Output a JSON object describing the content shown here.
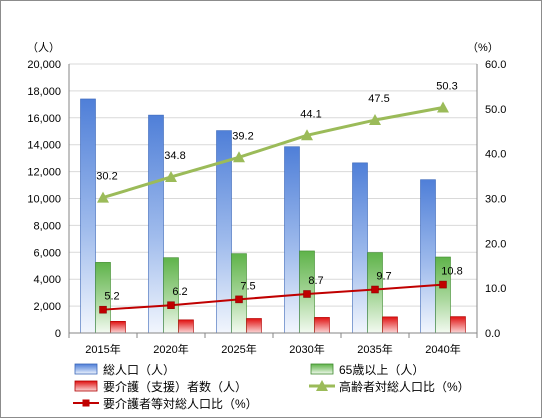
{
  "chart_data": {
    "type": "bar",
    "categories": [
      "2015年",
      "2020年",
      "2025年",
      "2030年",
      "2035年",
      "2040年"
    ],
    "left_axis": {
      "unit_label": "（人）",
      "ylim": [
        0,
        20000
      ],
      "ticks": [
        "0",
        "2,000",
        "4,000",
        "6,000",
        "8,000",
        "10,000",
        "12,000",
        "14,000",
        "16,000",
        "18,000",
        "20,000"
      ]
    },
    "right_axis": {
      "unit_label": "（%）",
      "ylim": [
        0,
        60
      ],
      "ticks": [
        "0.0",
        "10.0",
        "20.0",
        "30.0",
        "40.0",
        "50.0",
        "60.0"
      ]
    },
    "series": [
      {
        "name": "総人口（人）",
        "type": "bar",
        "axis": "left",
        "color": "#4f7fd8",
        "values": [
          17400,
          16200,
          15050,
          13850,
          12650,
          11400
        ]
      },
      {
        "name": "65歳以上（人）",
        "type": "bar",
        "axis": "left",
        "color": "#5fb34a",
        "values": [
          5250,
          5600,
          5900,
          6100,
          5980,
          5650
        ]
      },
      {
        "name": "要介護（支援）者数（人）",
        "type": "bar",
        "axis": "left",
        "color": "#e01010",
        "values": [
          870,
          980,
          1080,
          1160,
          1200,
          1220
        ]
      },
      {
        "name": "高齢者対総人口比（%）",
        "type": "line",
        "axis": "right",
        "color": "#9bbb59",
        "marker": "triangle",
        "values": [
          30.2,
          34.8,
          39.2,
          44.1,
          47.5,
          50.3
        ],
        "labels": [
          "30.2",
          "34.8",
          "39.2",
          "44.1",
          "47.5",
          "50.3"
        ]
      },
      {
        "name": "要介護者等対総人口比（%）",
        "type": "line",
        "axis": "right",
        "color": "#c00000",
        "marker": "square",
        "values": [
          5.2,
          6.2,
          7.5,
          8.7,
          9.7,
          10.8
        ],
        "labels": [
          "5.2",
          "6.2",
          "7.5",
          "8.7",
          "9.7",
          "10.8"
        ]
      }
    ],
    "legend_placement": "bottom",
    "grid": true
  }
}
